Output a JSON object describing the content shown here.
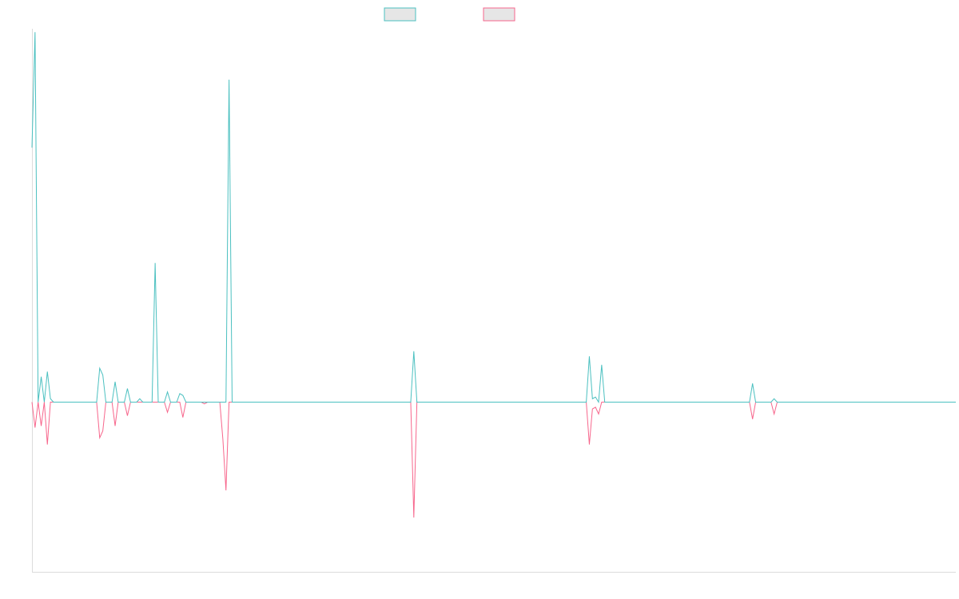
{
  "chart_data": {
    "type": "line",
    "title": "",
    "xlabel": "",
    "ylabel": "",
    "x_count": 300,
    "ylim": [
      -100,
      220
    ],
    "grid": false,
    "legend_position": "top-center",
    "series": [
      {
        "name": "",
        "color": "#4bc0c0",
        "fill": "#e6e6e6",
        "points": [
          [
            0,
            150
          ],
          [
            1,
            218
          ],
          [
            2,
            0
          ],
          [
            3,
            15
          ],
          [
            4,
            0
          ],
          [
            5,
            18
          ],
          [
            6,
            2
          ],
          [
            7,
            0
          ],
          [
            21,
            0
          ],
          [
            22,
            20
          ],
          [
            23,
            16
          ],
          [
            24,
            0
          ],
          [
            26,
            0
          ],
          [
            27,
            12
          ],
          [
            28,
            0
          ],
          [
            30,
            0
          ],
          [
            31,
            8
          ],
          [
            32,
            0
          ],
          [
            34,
            0
          ],
          [
            35,
            2
          ],
          [
            36,
            0
          ],
          [
            39,
            0
          ],
          [
            40,
            82
          ],
          [
            41,
            0
          ],
          [
            43,
            0
          ],
          [
            44,
            6
          ],
          [
            45,
            0
          ],
          [
            47,
            0
          ],
          [
            48,
            5
          ],
          [
            49,
            4
          ],
          [
            50,
            0
          ],
          [
            63,
            0
          ],
          [
            64,
            190
          ],
          [
            65,
            0
          ],
          [
            123,
            0
          ],
          [
            124,
            30
          ],
          [
            125,
            0
          ],
          [
            180,
            0
          ],
          [
            181,
            27
          ],
          [
            182,
            2
          ],
          [
            183,
            3
          ],
          [
            184,
            0
          ],
          [
            185,
            22
          ],
          [
            186,
            0
          ],
          [
            233,
            0
          ],
          [
            234,
            11
          ],
          [
            235,
            0
          ],
          [
            240,
            0
          ],
          [
            241,
            2
          ],
          [
            242,
            0
          ],
          [
            300,
            0
          ]
        ]
      },
      {
        "name": "",
        "color": "#f7668c",
        "fill": "#e6e6e6",
        "points": [
          [
            0,
            0
          ],
          [
            1,
            -15
          ],
          [
            2,
            0
          ],
          [
            3,
            -14
          ],
          [
            4,
            0
          ],
          [
            5,
            -25
          ],
          [
            6,
            0
          ],
          [
            21,
            0
          ],
          [
            22,
            -21
          ],
          [
            23,
            -17
          ],
          [
            24,
            0
          ],
          [
            26,
            0
          ],
          [
            27,
            -14
          ],
          [
            28,
            0
          ],
          [
            30,
            0
          ],
          [
            31,
            -8
          ],
          [
            32,
            0
          ],
          [
            43,
            0
          ],
          [
            44,
            -6
          ],
          [
            45,
            0
          ],
          [
            48,
            0
          ],
          [
            49,
            -9
          ],
          [
            50,
            0
          ],
          [
            55,
            0
          ],
          [
            56,
            -1
          ],
          [
            57,
            0
          ],
          [
            61,
            0
          ],
          [
            62,
            -22
          ],
          [
            63,
            -52
          ],
          [
            64,
            0
          ],
          [
            123,
            0
          ],
          [
            124,
            -68
          ],
          [
            125,
            0
          ],
          [
            180,
            0
          ],
          [
            181,
            -25
          ],
          [
            182,
            -4
          ],
          [
            183,
            -3
          ],
          [
            184,
            -7
          ],
          [
            185,
            0
          ],
          [
            233,
            0
          ],
          [
            234,
            -10
          ],
          [
            235,
            0
          ],
          [
            240,
            0
          ],
          [
            241,
            -7
          ],
          [
            242,
            0
          ],
          [
            300,
            0
          ]
        ]
      }
    ]
  }
}
